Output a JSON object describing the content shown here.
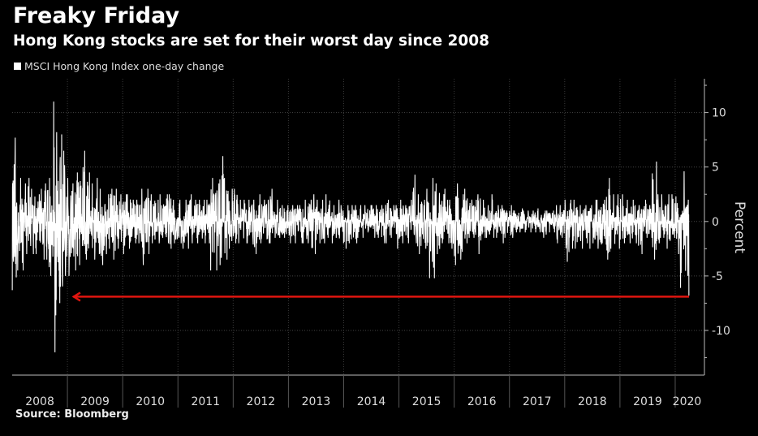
{
  "header": {
    "title": "Freaky Friday",
    "subtitle": "Hong Kong stocks are set for their worst day since 2008"
  },
  "footer": {
    "source": "Source: Bloomberg"
  },
  "chart_data": {
    "type": "line",
    "title": "Freaky Friday",
    "subtitle": "Hong Kong stocks are set for their worst day since 2008",
    "legend": [
      {
        "name": "MSCI Hong Kong Index one-day change",
        "color": "#ffffff"
      }
    ],
    "legend_placement": "top-left",
    "xlabel": "",
    "ylabel": "Percent",
    "xlim": [
      2008,
      2020.25
    ],
    "ylim": [
      -14.1,
      13.1
    ],
    "y_ticks": [
      10,
      5,
      0,
      -5,
      -10
    ],
    "x_tick_labels": [
      "2008",
      "2009",
      "2010",
      "2011",
      "2012",
      "2013",
      "2014",
      "2015",
      "2016",
      "2017",
      "2018",
      "2019",
      "2020"
    ],
    "grid": true,
    "series_note": "monthly max / min of daily percent change",
    "monthly_range": {
      "2008": {
        "max": [
          7.7,
          4,
          3.5,
          4,
          3,
          2.5,
          3,
          3.5,
          4,
          11,
          8,
          6.5
        ],
        "min": [
          -6.3,
          -4.5,
          -4.5,
          -3,
          -3,
          -3,
          -3.5,
          -3.5,
          -5,
          -12,
          -7.5,
          -5
        ]
      },
      "2009": {
        "max": [
          4,
          3.5,
          4.5,
          6.5,
          4.5,
          3.5,
          4,
          3,
          2.5,
          3,
          3,
          2.5
        ],
        "min": [
          -5,
          -4.5,
          -4,
          -3,
          -3.5,
          -3.5,
          -3,
          -4,
          -3,
          -2.5,
          -3.5,
          -2.5
        ]
      },
      "2010": {
        "max": [
          2.5,
          2.5,
          2,
          2,
          3,
          3,
          2.5,
          2,
          2.5,
          2.5,
          2.5,
          2
        ],
        "min": [
          -3,
          -2.5,
          -2,
          -2,
          -4,
          -3,
          -2,
          -2,
          -1.5,
          -2,
          -2.5,
          -2
        ]
      },
      "2011": {
        "max": [
          2,
          2,
          2.5,
          2,
          2,
          2,
          2,
          4,
          3.5,
          6,
          4,
          3
        ],
        "min": [
          -2,
          -2.5,
          -2.5,
          -2,
          -2,
          -2,
          -2,
          -4.5,
          -4.5,
          -4,
          -3.5,
          -2.5
        ]
      },
      "2012": {
        "max": [
          3,
          2,
          2,
          2,
          2,
          2.5,
          2,
          2,
          3,
          2,
          1.5,
          1.5
        ],
        "min": [
          -2,
          -2,
          -2,
          -2,
          -3,
          -2,
          -2,
          -2,
          -2,
          -1.5,
          -1.5,
          -1.5
        ]
      },
      "2013": {
        "max": [
          1.5,
          1.5,
          1.5,
          2,
          2,
          2.5,
          2,
          2,
          2.5,
          1.5,
          2,
          1.5
        ],
        "min": [
          -2,
          -2,
          -2,
          -2,
          -2,
          -3,
          -2,
          -2,
          -1.5,
          -2,
          -1.5,
          -2
        ]
      },
      "2014": {
        "max": [
          1.5,
          1.5,
          1.5,
          1.5,
          1.5,
          1.5,
          1.5,
          1.5,
          1.5,
          2,
          1.5,
          1.5
        ],
        "min": [
          -2.5,
          -2,
          -2,
          -1.5,
          -1.5,
          -1,
          -1.5,
          -1.5,
          -2,
          -2,
          -1.5,
          -2.5
        ]
      },
      "2015": {
        "max": [
          2,
          1.5,
          2,
          4.3,
          2.5,
          2,
          3,
          4,
          3.5,
          3,
          2,
          2
        ],
        "min": [
          -2,
          -1.5,
          -2,
          -2,
          -3,
          -2.5,
          -5.2,
          -5.2,
          -3,
          -2,
          -2,
          -2.5
        ]
      },
      "2016": {
        "max": [
          3.5,
          2.5,
          3,
          2,
          2,
          2.5,
          2,
          1.5,
          2.5,
          1.5,
          1.5,
          1
        ],
        "min": [
          -4,
          -3.5,
          -2,
          -1.5,
          -1.5,
          -3,
          -1.5,
          -1.5,
          -1.5,
          -1.5,
          -2,
          -1.5
        ]
      },
      "2017": {
        "max": [
          1.5,
          1,
          1.2,
          1,
          1,
          1,
          1.2,
          1,
          1,
          1,
          1.5,
          1.5
        ],
        "min": [
          -1.5,
          -1,
          -1,
          -1,
          -1,
          -1,
          -1,
          -1.5,
          -1,
          -1,
          -2,
          -1.5
        ]
      },
      "2018": {
        "max": [
          2,
          2,
          2,
          1.5,
          1.5,
          1.5,
          2,
          2,
          2,
          4,
          2.5,
          2.5
        ],
        "min": [
          -3.7,
          -2.5,
          -2.5,
          -2.5,
          -2,
          -2.5,
          -2,
          -2.5,
          -2,
          -3.5,
          -2.5,
          -2.5
        ]
      },
      "2019": {
        "max": [
          2.5,
          2,
          2,
          1.5,
          1.5,
          2,
          1.5,
          5.5,
          2.5,
          2.5,
          2.5,
          2.5
        ],
        "min": [
          -2,
          -1.5,
          -2,
          -2,
          -3,
          -1.5,
          -1.5,
          -3.5,
          -2,
          -1.5,
          -2.5,
          -1.5
        ]
      },
      "2020": {
        "max": [
          2.3,
          4.6,
          2
        ],
        "min": [
          -3,
          -6.1,
          -6.8
        ]
      }
    },
    "last_value": -6.8,
    "annotation": {
      "type": "arrow",
      "color": "#e0150f",
      "y": -6.9,
      "x_from": 2020.25,
      "x_to": 2009.1
    }
  }
}
